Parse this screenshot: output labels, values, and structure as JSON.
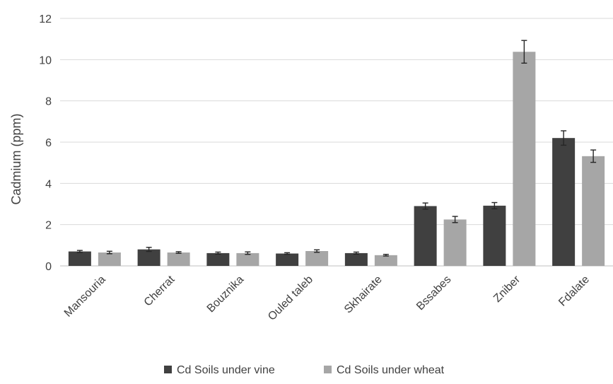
{
  "chart_data": {
    "type": "bar",
    "categories": [
      "Mansouria",
      "Cherrat",
      "Bouznika",
      "Ouled taleb",
      "Skhairate",
      "Bssabes",
      "Zniber",
      "Fdalate"
    ],
    "series": [
      {
        "name": "Cd Soils under vine",
        "color": "#404040",
        "values": [
          0.7,
          0.8,
          0.62,
          0.6,
          0.62,
          2.9,
          2.92,
          6.2
        ],
        "errors": [
          0.05,
          0.1,
          0.05,
          0.04,
          0.05,
          0.15,
          0.15,
          0.35
        ]
      },
      {
        "name": "Cd Soils under wheat",
        "color": "#a6a6a6",
        "values": [
          0.65,
          0.65,
          0.62,
          0.72,
          0.52,
          2.25,
          10.38,
          5.32
        ],
        "errors": [
          0.06,
          0.04,
          0.06,
          0.06,
          0.04,
          0.15,
          0.55,
          0.3
        ]
      }
    ],
    "title": "",
    "xlabel": "",
    "ylabel": "Cadmium (ppm)",
    "ylim": [
      0,
      12
    ],
    "yticks": [
      "0",
      "2",
      "4",
      "6",
      "8",
      "10",
      "12"
    ],
    "grid": true,
    "legend_position": "bottom"
  }
}
